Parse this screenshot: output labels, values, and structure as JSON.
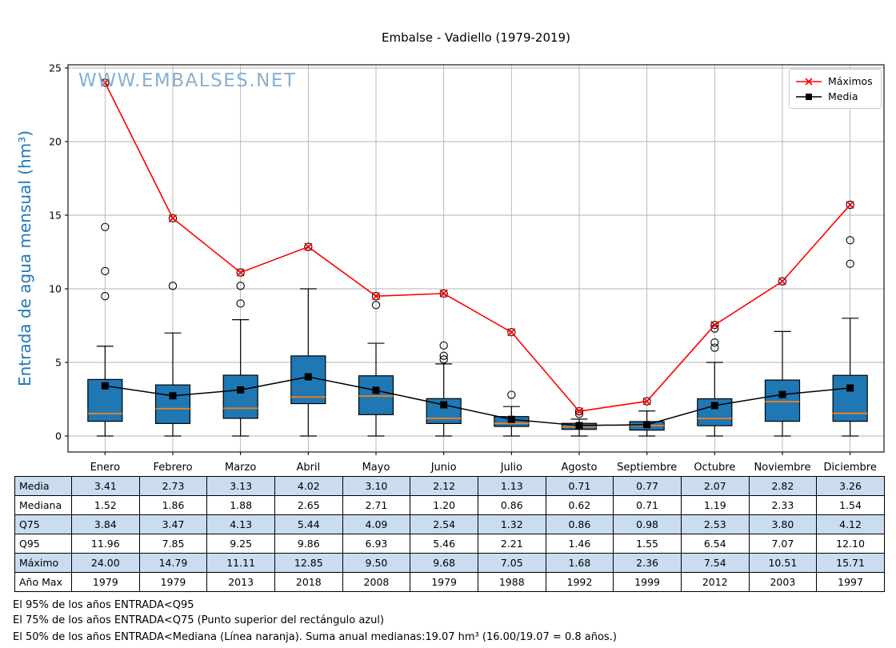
{
  "title": "Embalse - Vadiello (1979-2019)",
  "watermark": "WWW.EMBALSES.NET",
  "y_axis_label": "Entrada de agua mensual (hm³)",
  "legend": {
    "items": [
      {
        "label": "Máximos",
        "color": "#ff0000",
        "marker": "x"
      },
      {
        "label": "Media",
        "color": "#000000",
        "marker": "square"
      }
    ]
  },
  "chart_data": {
    "type": "boxplot",
    "title": "Embalse - Vadiello (1979-2019)",
    "ylabel": "Entrada de agua mensual (hm³)",
    "categories": [
      "Enero",
      "Febrero",
      "Marzo",
      "Abril",
      "Mayo",
      "Junio",
      "Julio",
      "Agosto",
      "Septiembre",
      "Octubre",
      "Noviembre",
      "Diciembre"
    ],
    "ylim": [
      -1.1,
      25.3
    ],
    "yticks": [
      0,
      5,
      10,
      15,
      20,
      25
    ],
    "grid": true,
    "legend_position": "upper right",
    "colors": {
      "box_fill": "#1f77b4",
      "box_edge": "#000000",
      "median": "#ff7f0e",
      "whisker": "#000000",
      "outlier": "#000000",
      "maximos_line": "#ff0000",
      "media_line": "#000000",
      "gridline": "#b3b3b3"
    },
    "series": [
      {
        "name": "Máximos",
        "type": "line",
        "marker": "x",
        "color": "#ff0000",
        "values": [
          24.0,
          14.79,
          11.11,
          12.85,
          9.5,
          9.68,
          7.05,
          1.68,
          2.36,
          7.54,
          10.51,
          15.71
        ]
      },
      {
        "name": "Media",
        "type": "line",
        "marker": "square",
        "color": "#000000",
        "values": [
          3.41,
          2.73,
          3.13,
          4.02,
          3.1,
          2.12,
          1.13,
          0.71,
          0.77,
          2.07,
          2.82,
          3.26
        ]
      }
    ],
    "boxes": {
      "median": [
        1.52,
        1.86,
        1.88,
        2.65,
        2.71,
        1.2,
        0.86,
        0.62,
        0.71,
        1.19,
        2.33,
        1.54
      ],
      "q25": [
        1.0,
        0.85,
        1.2,
        2.2,
        1.45,
        0.85,
        0.65,
        0.45,
        0.4,
        0.7,
        1.0,
        1.0
      ],
      "q75": [
        3.84,
        3.47,
        4.13,
        5.44,
        4.09,
        2.54,
        1.32,
        0.86,
        0.98,
        2.53,
        3.8,
        4.12
      ],
      "whisker_low": [
        0,
        0,
        0,
        0,
        0,
        0,
        0,
        0,
        0,
        0,
        0,
        0
      ],
      "whisker_high": [
        6.1,
        7.0,
        7.9,
        10.0,
        6.3,
        4.9,
        2.0,
        1.15,
        1.7,
        5.0,
        7.1,
        8.0
      ],
      "outliers": [
        [
          9.5,
          11.2,
          14.2,
          24.0
        ],
        [
          10.2,
          14.79
        ],
        [
          9.0,
          10.2,
          11.11
        ],
        [
          12.85
        ],
        [
          8.9,
          9.5
        ],
        [
          5.2,
          5.45,
          6.15,
          9.68
        ],
        [
          2.8,
          7.05
        ],
        [
          1.5,
          1.68
        ],
        [
          2.36
        ],
        [
          6.0,
          6.35,
          7.3,
          7.54
        ],
        [
          10.51
        ],
        [
          11.7,
          13.3,
          15.71
        ]
      ]
    }
  },
  "table": {
    "columns": [
      "Enero",
      "Febrero",
      "Marzo",
      "Abril",
      "Mayo",
      "Junio",
      "Julio",
      "Agosto",
      "Septiembre",
      "Octubre",
      "Noviembre",
      "Diciembre"
    ],
    "rows": [
      {
        "label": "Media",
        "values": [
          "3.41",
          "2.73",
          "3.13",
          "4.02",
          "3.10",
          "2.12",
          "1.13",
          "0.71",
          "0.77",
          "2.07",
          "2.82",
          "3.26"
        ]
      },
      {
        "label": "Mediana",
        "values": [
          "1.52",
          "1.86",
          "1.88",
          "2.65",
          "2.71",
          "1.20",
          "0.86",
          "0.62",
          "0.71",
          "1.19",
          "2.33",
          "1.54"
        ]
      },
      {
        "label": "Q75",
        "values": [
          "3.84",
          "3.47",
          "4.13",
          "5.44",
          "4.09",
          "2.54",
          "1.32",
          "0.86",
          "0.98",
          "2.53",
          "3.80",
          "4.12"
        ]
      },
      {
        "label": "Q95",
        "values": [
          "11.96",
          "7.85",
          "9.25",
          "9.86",
          "6.93",
          "5.46",
          "2.21",
          "1.46",
          "1.55",
          "6.54",
          "7.07",
          "12.10"
        ]
      },
      {
        "label": "Máximo",
        "values": [
          "24.00",
          "14.79",
          "11.11",
          "12.85",
          "9.50",
          "9.68",
          "7.05",
          "1.68",
          "2.36",
          "7.54",
          "10.51",
          "15.71"
        ]
      },
      {
        "label": "Año Max",
        "values": [
          "1979",
          "1979",
          "2013",
          "2018",
          "2008",
          "1979",
          "1988",
          "1992",
          "1999",
          "2012",
          "2003",
          "1997"
        ]
      }
    ]
  },
  "footnotes": [
    "El 95% de los años ENTRADA<Q95",
    "El 75% de los años ENTRADA<Q75 (Punto superior del rectángulo azul)",
    "El 50% de los años ENTRADA<Mediana (Línea naranja). Suma anual medianas:19.07 hm³ (16.00/19.07 = 0.8 años.)"
  ]
}
